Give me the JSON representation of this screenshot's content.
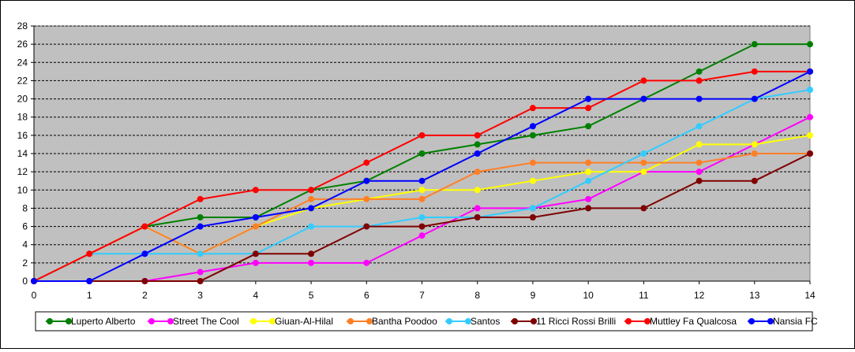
{
  "chart_data": {
    "type": "line",
    "title": "",
    "xlabel": "",
    "ylabel": "",
    "x": [
      0,
      1,
      2,
      3,
      4,
      5,
      6,
      7,
      8,
      9,
      10,
      11,
      12,
      13,
      14
    ],
    "xlim": [
      0,
      14
    ],
    "ylim": [
      0,
      28
    ],
    "y_ticks": [
      0,
      2,
      4,
      6,
      8,
      10,
      12,
      14,
      16,
      18,
      20,
      22,
      24,
      26,
      28
    ],
    "grid": true,
    "legend_position": "bottom",
    "plot_background": "#c0c0c0",
    "series": [
      {
        "name": "Luperto Alberto",
        "color": "#008000",
        "values": [
          0,
          3,
          6,
          7,
          7,
          10,
          11,
          14,
          15,
          16,
          17,
          20,
          23,
          26,
          26
        ]
      },
      {
        "name": "Street The Cool",
        "color": "#ff00ff",
        "values": [
          0,
          0,
          0,
          1,
          2,
          2,
          2,
          5,
          8,
          8,
          9,
          12,
          12,
          15,
          18
        ]
      },
      {
        "name": "Giuan-Al-Hilal",
        "color": "#ffff00",
        "values": [
          0,
          3,
          6,
          3,
          6,
          8,
          9,
          10,
          10,
          11,
          12,
          12,
          15,
          15,
          16
        ]
      },
      {
        "name": "Bantha Poodoo",
        "color": "#ff7f27",
        "values": [
          0,
          3,
          6,
          3,
          6,
          9,
          9,
          9,
          12,
          13,
          13,
          13,
          13,
          14,
          14
        ]
      },
      {
        "name": "Santos",
        "color": "#33ccff",
        "values": [
          0,
          3,
          3,
          3,
          3,
          6,
          6,
          7,
          7,
          8,
          11,
          14,
          17,
          20,
          21
        ]
      },
      {
        "name": "11 Ricci Rossi Brilli",
        "color": "#800000",
        "values": [
          0,
          0,
          0,
          0,
          3,
          3,
          6,
          6,
          7,
          7,
          8,
          8,
          11,
          11,
          14
        ]
      },
      {
        "name": "Muttley Fa Qualcosa",
        "color": "#ff0000",
        "values": [
          0,
          3,
          6,
          9,
          10,
          10,
          13,
          16,
          16,
          19,
          19,
          22,
          22,
          23,
          23
        ]
      },
      {
        "name": "Nansia FC",
        "color": "#0000ff",
        "values": [
          0,
          0,
          3,
          6,
          7,
          8,
          11,
          11,
          14,
          17,
          20,
          20,
          20,
          20,
          23
        ]
      }
    ]
  }
}
